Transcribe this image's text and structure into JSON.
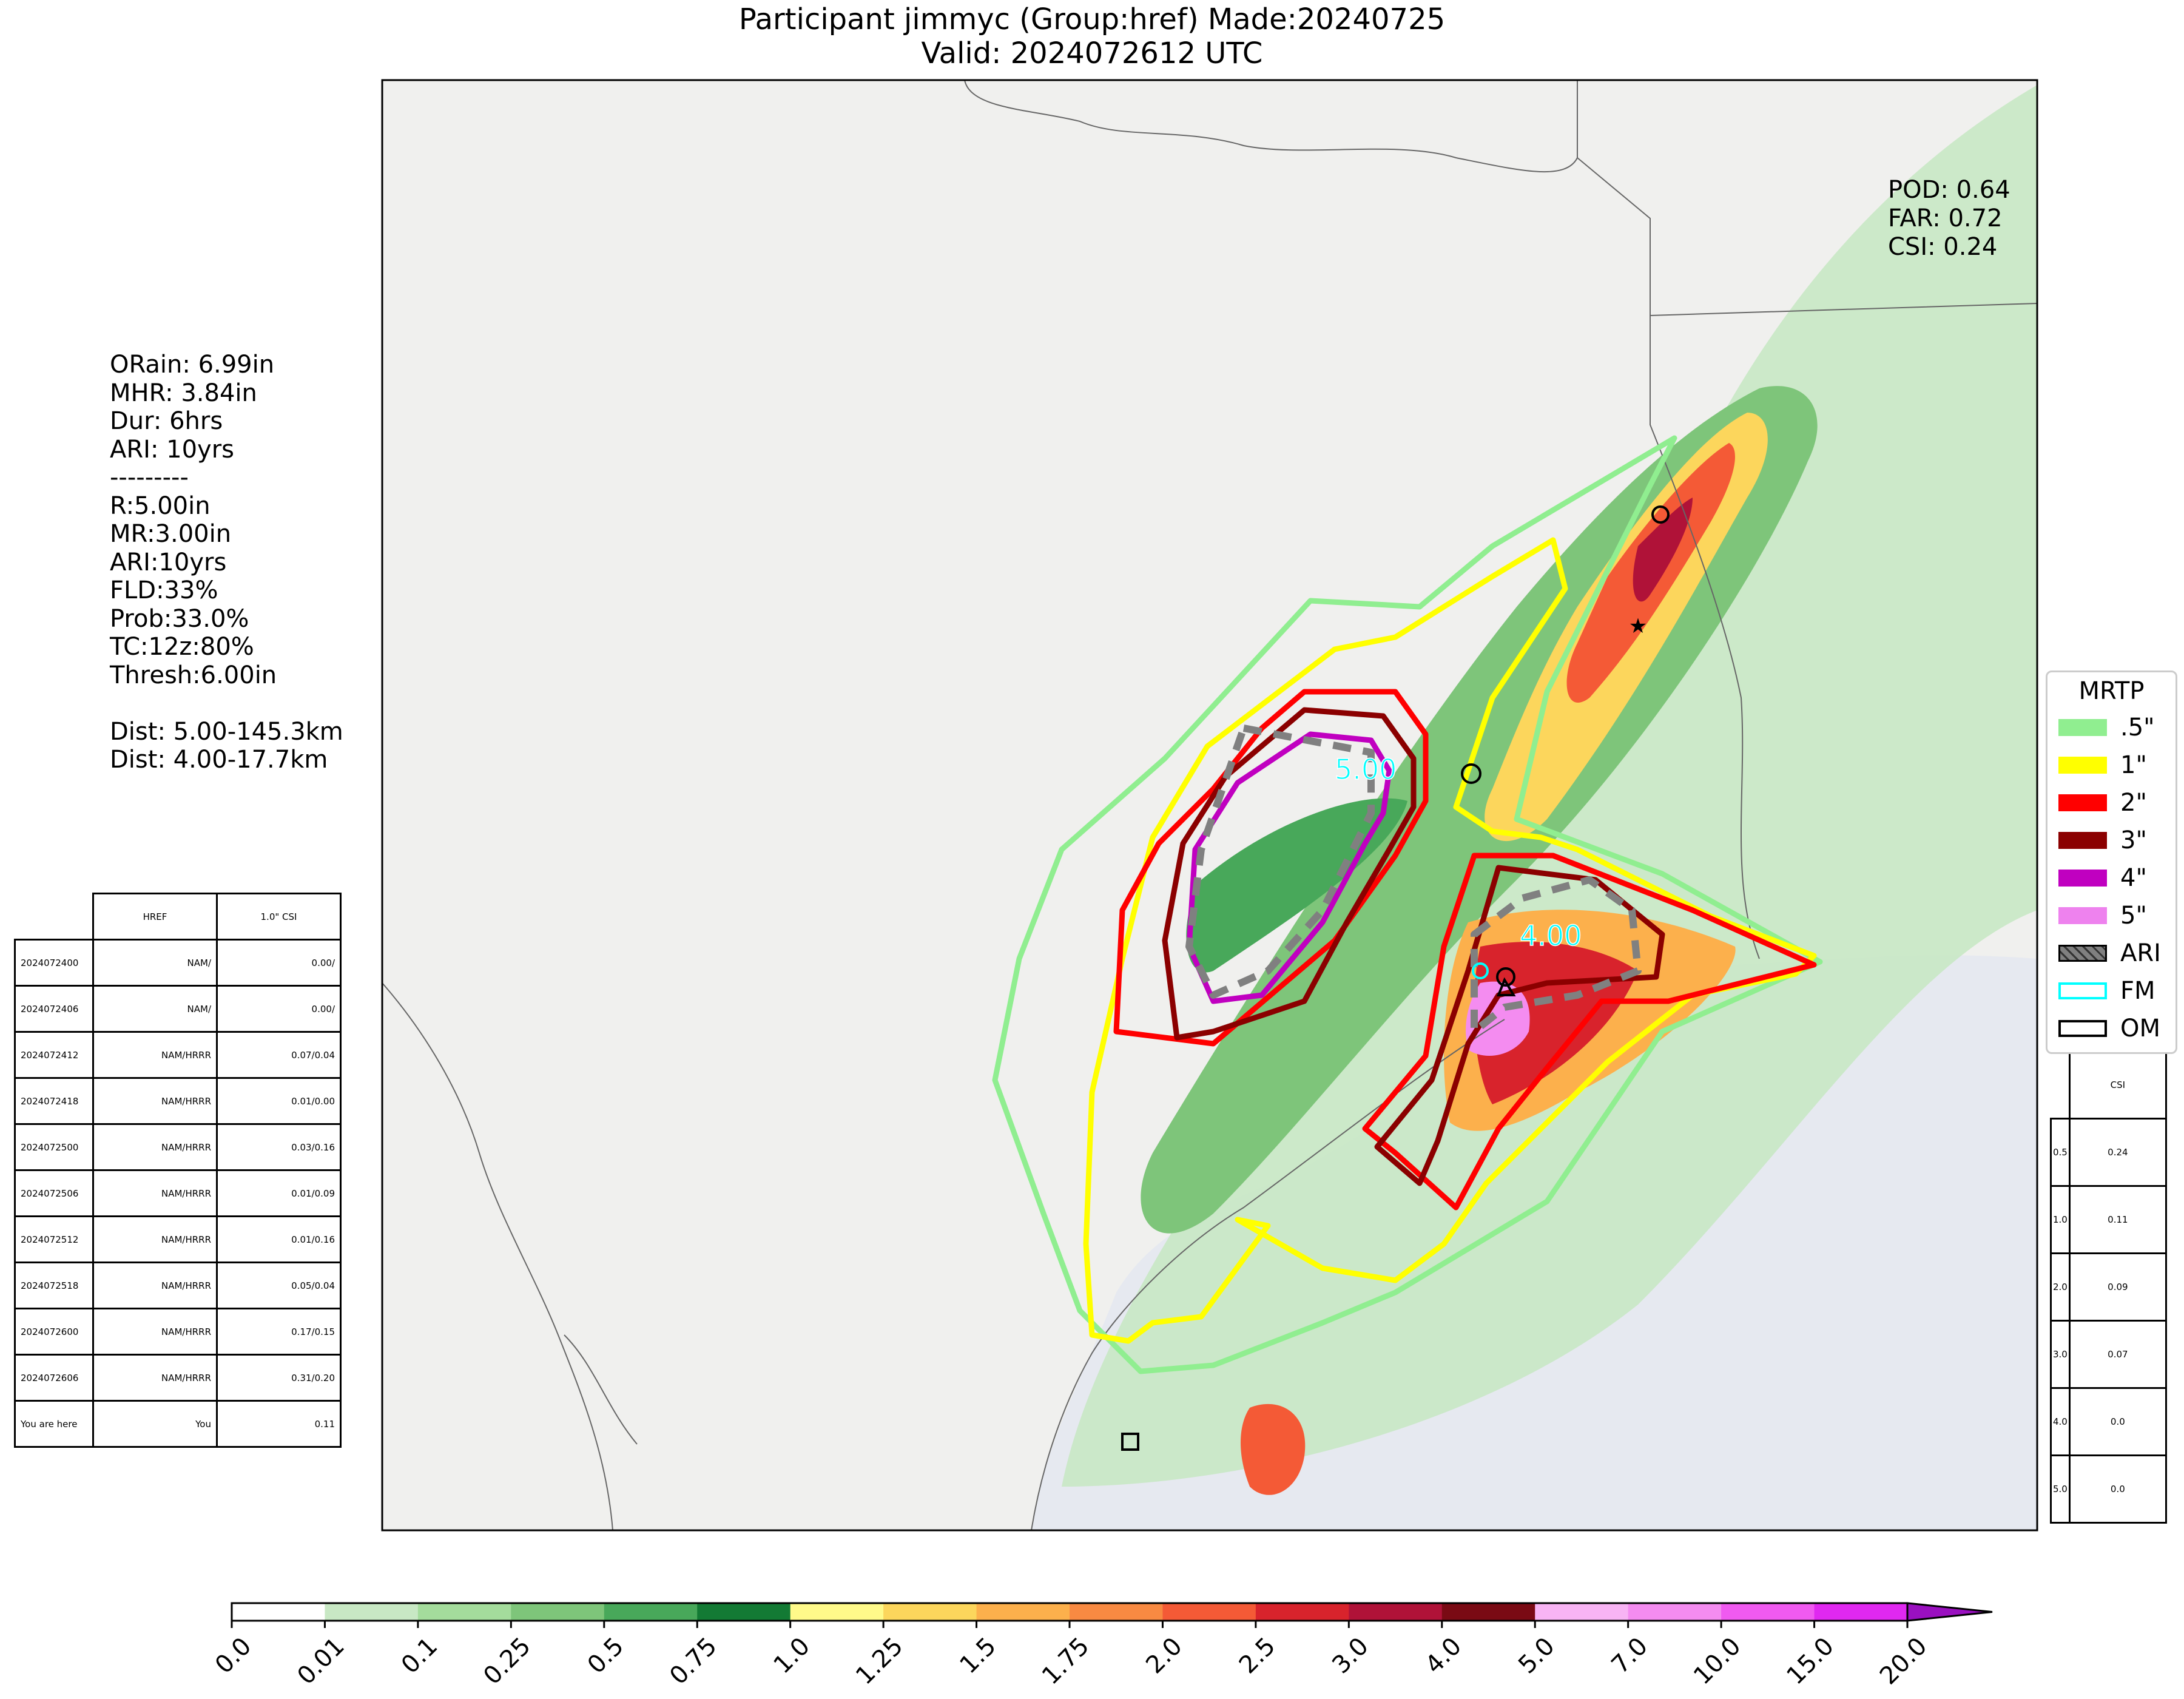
{
  "title": {
    "line1": "Participant jimmyc (Group:href) Made:20240725",
    "line2": "Valid: 2024072612 UTC"
  },
  "scores": {
    "pod": "POD: 0.64",
    "far": "FAR: 0.72",
    "csi": "CSI: 0.24"
  },
  "stats": [
    "ORain: 6.99in",
    "MHR: 3.84in",
    "Dur: 6hrs",
    "ARI: 10yrs",
    "---------",
    "R:5.00in",
    "MR:3.00in",
    "ARI:10yrs",
    "FLD:33%",
    "Prob:33.0%",
    "TC:12z:80%",
    "Thresh:6.00in",
    "",
    "Dist: 5.00-145.3km",
    "Dist: 4.00-17.7km"
  ],
  "left_table": {
    "headers": [
      "",
      "HREF",
      "1.0\" CSI"
    ],
    "rows": [
      [
        "2024072400",
        "NAM/",
        "0.00/"
      ],
      [
        "2024072406",
        "NAM/",
        "0.00/"
      ],
      [
        "2024072412",
        "NAM/HRRR",
        "0.07/0.04"
      ],
      [
        "2024072418",
        "NAM/HRRR",
        "0.01/0.00"
      ],
      [
        "2024072500",
        "NAM/HRRR",
        "0.03/0.16"
      ],
      [
        "2024072506",
        "NAM/HRRR",
        "0.01/0.09"
      ],
      [
        "2024072512",
        "NAM/HRRR",
        "0.01/0.16"
      ],
      [
        "2024072518",
        "NAM/HRRR",
        "0.05/0.04"
      ],
      [
        "2024072600",
        "NAM/HRRR",
        "0.17/0.15"
      ],
      [
        "2024072606",
        "NAM/HRRR",
        "0.31/0.20"
      ],
      [
        "You are here",
        "You",
        "0.11"
      ]
    ]
  },
  "right_table": {
    "header": "CSI",
    "rows": [
      [
        "0.5",
        "0.24"
      ],
      [
        "1.0",
        "0.11"
      ],
      [
        "2.0",
        "0.09"
      ],
      [
        "3.0",
        "0.07"
      ],
      [
        "4.0",
        "0.0"
      ],
      [
        "5.0",
        "0.0"
      ]
    ]
  },
  "legend": {
    "title": "MRTP",
    "items": [
      {
        "label": ".5\"",
        "color": "#90ee90",
        "style": "fill"
      },
      {
        "label": "1\"",
        "color": "#ffff00",
        "style": "fill"
      },
      {
        "label": "2\"",
        "color": "#ff0000",
        "style": "fill"
      },
      {
        "label": "3\"",
        "color": "#8b0000",
        "style": "fill"
      },
      {
        "label": "4\"",
        "color": "#c000c0",
        "style": "fill"
      },
      {
        "label": "5\"",
        "color": "#ee82ee",
        "style": "fill"
      },
      {
        "label": "ARI",
        "color": "#808080",
        "style": "hatch"
      },
      {
        "label": "FM",
        "color": "#00ffff",
        "style": "outline"
      },
      {
        "label": "OM",
        "color": "#000000",
        "style": "outline"
      }
    ]
  },
  "contour_labels": {
    "label_5": "5.00",
    "label_4": "4.00"
  },
  "colorbar": {
    "ticks": [
      "0.0",
      "0.01",
      "0.1",
      "0.25",
      "0.5",
      "0.75",
      "1.0",
      "1.25",
      "1.5",
      "1.75",
      "2.0",
      "2.5",
      "3.0",
      "4.0",
      "5.0",
      "7.0",
      "10.0",
      "15.0",
      "20.0"
    ],
    "colors": [
      "#ffffff",
      "#c8e8c4",
      "#a4dc9c",
      "#7ec57a",
      "#48a85a",
      "#137a34",
      "#fffa8a",
      "#fcd65c",
      "#fcb04c",
      "#f88a42",
      "#f45a36",
      "#d8232c",
      "#b01238",
      "#7a0a14",
      "#f8b4f4",
      "#f48cf0",
      "#f05af0",
      "#e028f0",
      "#9a10c0"
    ]
  }
}
